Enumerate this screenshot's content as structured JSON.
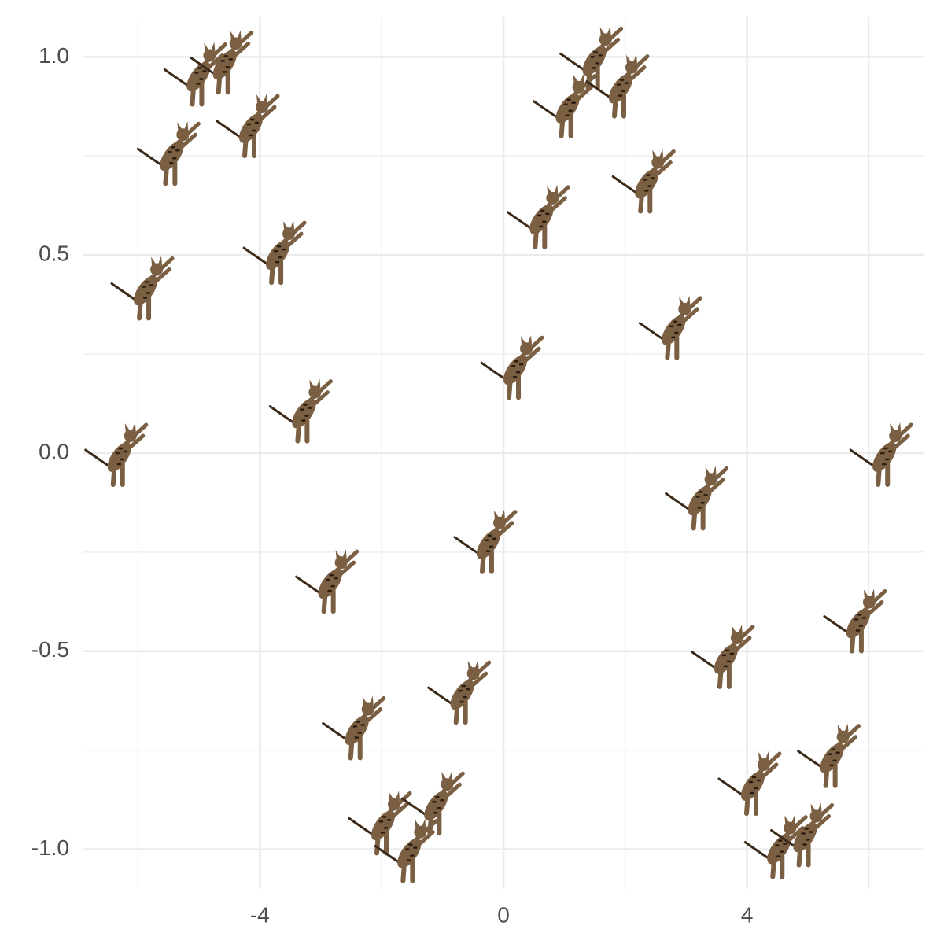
{
  "chart_data": {
    "type": "scatter",
    "x": [
      -6.28,
      -5.85,
      -5.42,
      -4.98,
      -4.55,
      -4.12,
      -3.68,
      -3.25,
      -2.82,
      -2.38,
      -1.95,
      -1.52,
      -1.08,
      -0.65,
      -0.22,
      0.22,
      0.65,
      1.08,
      1.52,
      1.95,
      2.38,
      2.82,
      3.25,
      3.68,
      4.12,
      4.55,
      4.98,
      5.42,
      5.85,
      6.28
    ],
    "values": [
      0.0,
      0.42,
      0.76,
      0.96,
      0.99,
      0.83,
      0.51,
      0.11,
      -0.32,
      -0.69,
      -0.93,
      -1.0,
      -0.88,
      -0.6,
      -0.22,
      0.22,
      0.6,
      0.88,
      1.0,
      0.93,
      0.69,
      0.32,
      -0.11,
      -0.51,
      -0.83,
      -0.99,
      -0.96,
      -0.76,
      -0.42,
      0.0
    ],
    "color": "#7a5f42",
    "xlim": [
      -6.91,
      6.91
    ],
    "ylim": [
      -1.1,
      1.1
    ],
    "xticks": [
      -4,
      0,
      4
    ],
    "yticks": [
      {
        "value": -1,
        "label": "-1.0"
      },
      -0.5,
      {
        "value": 0,
        "label": "0.0"
      },
      0.5,
      {
        "value": 1,
        "label": "1.0"
      }
    ],
    "xminor": [
      -6,
      -2,
      2,
      6
    ],
    "yminor": [
      -0.75,
      -0.25,
      0.25,
      0.75
    ],
    "grid": true
  }
}
